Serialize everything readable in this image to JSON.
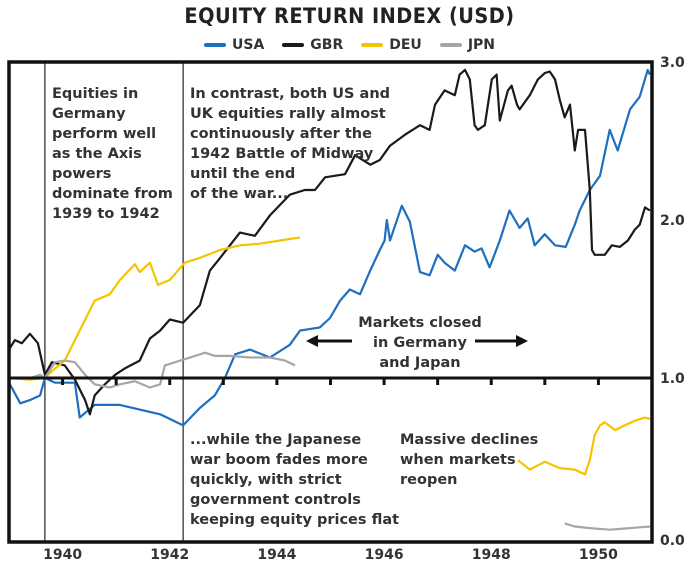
{
  "chart_data": {
    "type": "line",
    "title": "EQUITY RETURN INDEX (USD)",
    "xlabel": "",
    "ylabel": "",
    "xlim": [
      1939.0,
      1951.0
    ],
    "ylim": [
      0.0,
      3.0
    ],
    "x_ticks": [
      1940,
      1942,
      1944,
      1946,
      1948,
      1950
    ],
    "x_tick_labels": [
      "1940",
      "1942",
      "1944",
      "1946",
      "1948",
      "1950"
    ],
    "y_ticks": [
      0.0,
      1.0,
      2.0,
      3.0
    ],
    "y_tick_labels": [
      "0.0",
      "1.0",
      "2.0",
      "3.0"
    ],
    "legend_position": "top-center",
    "reference_lines": [
      1939.67,
      1942.25
    ],
    "series": [
      {
        "name": "USA",
        "color": "#1f6fbf",
        "segments": [
          [
            [
              1939.0,
              0.97
            ],
            [
              1939.21,
              0.84
            ],
            [
              1939.39,
              0.86
            ],
            [
              1939.58,
              0.89
            ],
            [
              1939.67,
              1.0
            ],
            [
              1939.86,
              0.97
            ],
            [
              1940.23,
              0.97
            ],
            [
              1940.32,
              0.75
            ],
            [
              1940.6,
              0.83
            ],
            [
              1941.07,
              0.83
            ],
            [
              1941.44,
              0.8
            ],
            [
              1941.82,
              0.77
            ],
            [
              1942.25,
              0.7
            ],
            [
              1942.56,
              0.81
            ],
            [
              1942.84,
              0.89
            ],
            [
              1943.03,
              1.0
            ],
            [
              1943.22,
              1.15
            ],
            [
              1943.5,
              1.18
            ],
            [
              1943.87,
              1.13
            ],
            [
              1944.24,
              1.21
            ],
            [
              1944.43,
              1.3
            ],
            [
              1944.8,
              1.32
            ],
            [
              1944.99,
              1.38
            ],
            [
              1945.18,
              1.49
            ],
            [
              1945.36,
              1.56
            ],
            [
              1945.55,
              1.53
            ],
            [
              1945.74,
              1.68
            ],
            [
              1945.92,
              1.81
            ],
            [
              1946.01,
              1.87
            ],
            [
              1946.05,
              2.0
            ],
            [
              1946.11,
              1.87
            ],
            [
              1946.33,
              2.09
            ],
            [
              1946.48,
              1.99
            ],
            [
              1946.67,
              1.67
            ],
            [
              1946.85,
              1.65
            ],
            [
              1947.0,
              1.78
            ],
            [
              1947.13,
              1.73
            ],
            [
              1947.32,
              1.68
            ],
            [
              1947.51,
              1.84
            ],
            [
              1947.69,
              1.8
            ],
            [
              1947.82,
              1.82
            ],
            [
              1947.97,
              1.7
            ],
            [
              1948.16,
              1.87
            ],
            [
              1948.34,
              2.06
            ],
            [
              1948.53,
              1.95
            ],
            [
              1948.68,
              2.01
            ],
            [
              1948.81,
              1.84
            ],
            [
              1949.0,
              1.91
            ],
            [
              1949.19,
              1.84
            ],
            [
              1949.39,
              1.83
            ],
            [
              1949.56,
              1.97
            ],
            [
              1949.65,
              2.06
            ],
            [
              1949.84,
              2.19
            ],
            [
              1950.03,
              2.28
            ],
            [
              1950.21,
              2.57
            ],
            [
              1950.36,
              2.44
            ],
            [
              1950.59,
              2.7
            ],
            [
              1950.77,
              2.78
            ],
            [
              1950.92,
              2.95
            ],
            [
              1950.96,
              2.92
            ]
          ]
        ]
      },
      {
        "name": "GBR",
        "color": "#1a1a1a",
        "segments": [
          [
            [
              1939.0,
              1.18
            ],
            [
              1939.11,
              1.24
            ],
            [
              1939.24,
              1.22
            ],
            [
              1939.39,
              1.28
            ],
            [
              1939.54,
              1.22
            ],
            [
              1939.67,
              1.02
            ],
            [
              1939.8,
              1.1
            ],
            [
              1940.04,
              1.08
            ],
            [
              1940.23,
              0.99
            ],
            [
              1940.42,
              0.86
            ],
            [
              1940.51,
              0.77
            ],
            [
              1940.6,
              0.89
            ],
            [
              1940.79,
              0.96
            ],
            [
              1940.98,
              1.02
            ],
            [
              1941.16,
              1.06
            ],
            [
              1941.44,
              1.11
            ],
            [
              1941.63,
              1.25
            ],
            [
              1941.82,
              1.3
            ],
            [
              1942.0,
              1.37
            ],
            [
              1942.25,
              1.35
            ],
            [
              1942.56,
              1.46
            ],
            [
              1942.75,
              1.68
            ],
            [
              1942.94,
              1.76
            ],
            [
              1943.31,
              1.92
            ],
            [
              1943.59,
              1.9
            ],
            [
              1943.87,
              2.03
            ],
            [
              1944.24,
              2.16
            ],
            [
              1944.52,
              2.19
            ],
            [
              1944.71,
              2.19
            ],
            [
              1944.9,
              2.27
            ],
            [
              1945.27,
              2.29
            ],
            [
              1945.46,
              2.41
            ],
            [
              1945.74,
              2.35
            ],
            [
              1945.92,
              2.38
            ],
            [
              1946.11,
              2.47
            ],
            [
              1946.39,
              2.54
            ],
            [
              1946.67,
              2.6
            ],
            [
              1946.85,
              2.57
            ],
            [
              1946.95,
              2.73
            ],
            [
              1947.13,
              2.82
            ],
            [
              1947.32,
              2.79
            ],
            [
              1947.41,
              2.92
            ],
            [
              1947.51,
              2.95
            ],
            [
              1947.6,
              2.89
            ],
            [
              1947.69,
              2.6
            ],
            [
              1947.75,
              2.57
            ],
            [
              1947.88,
              2.6
            ],
            [
              1948.01,
              2.89
            ],
            [
              1948.1,
              2.92
            ],
            [
              1948.16,
              2.63
            ],
            [
              1948.31,
              2.82
            ],
            [
              1948.38,
              2.85
            ],
            [
              1948.48,
              2.73
            ],
            [
              1948.53,
              2.7
            ],
            [
              1948.72,
              2.79
            ],
            [
              1948.87,
              2.89
            ],
            [
              1949.0,
              2.93
            ],
            [
              1949.09,
              2.94
            ],
            [
              1949.19,
              2.89
            ],
            [
              1949.28,
              2.76
            ],
            [
              1949.37,
              2.65
            ],
            [
              1949.47,
              2.73
            ],
            [
              1949.56,
              2.44
            ],
            [
              1949.62,
              2.57
            ],
            [
              1949.75,
              2.57
            ],
            [
              1949.84,
              2.19
            ],
            [
              1949.88,
              1.81
            ],
            [
              1949.93,
              1.78
            ],
            [
              1950.12,
              1.78
            ],
            [
              1950.25,
              1.84
            ],
            [
              1950.4,
              1.83
            ],
            [
              1950.55,
              1.87
            ],
            [
              1950.68,
              1.94
            ],
            [
              1950.77,
              1.97
            ],
            [
              1950.87,
              2.08
            ],
            [
              1950.96,
              2.06
            ]
          ]
        ]
      },
      {
        "name": "DEU",
        "color": "#f5c400",
        "segments": [
          [
            [
              1939.0,
              1.0
            ],
            [
              1939.39,
              0.99
            ],
            [
              1939.67,
              1.0
            ],
            [
              1939.86,
              1.06
            ],
            [
              1940.04,
              1.11
            ],
            [
              1940.32,
              1.3
            ],
            [
              1940.6,
              1.49
            ],
            [
              1940.88,
              1.53
            ],
            [
              1941.07,
              1.62
            ],
            [
              1941.35,
              1.72
            ],
            [
              1941.44,
              1.67
            ],
            [
              1941.63,
              1.73
            ],
            [
              1941.78,
              1.59
            ],
            [
              1942.0,
              1.62
            ],
            [
              1942.28,
              1.73
            ],
            [
              1942.56,
              1.76
            ],
            [
              1942.94,
              1.81
            ],
            [
              1943.31,
              1.84
            ],
            [
              1943.68,
              1.85
            ],
            [
              1944.06,
              1.87
            ],
            [
              1944.43,
              1.89
            ]
          ],
          [
            [
              1948.5,
              0.48
            ],
            [
              1948.72,
              0.42
            ],
            [
              1949.0,
              0.47
            ],
            [
              1949.28,
              0.43
            ],
            [
              1949.56,
              0.42
            ],
            [
              1949.75,
              0.39
            ],
            [
              1949.84,
              0.48
            ],
            [
              1949.93,
              0.64
            ],
            [
              1950.03,
              0.7
            ],
            [
              1950.12,
              0.72
            ],
            [
              1950.31,
              0.67
            ],
            [
              1950.49,
              0.7
            ],
            [
              1950.68,
              0.73
            ],
            [
              1950.87,
              0.75
            ],
            [
              1950.96,
              0.74
            ]
          ]
        ]
      },
      {
        "name": "JPN",
        "color": "#a6a6a6",
        "segments": [
          [
            [
              1939.0,
              1.0
            ],
            [
              1939.39,
              1.0
            ],
            [
              1939.58,
              1.02
            ],
            [
              1939.67,
              1.0
            ],
            [
              1939.86,
              1.1
            ],
            [
              1940.04,
              1.11
            ],
            [
              1940.23,
              1.1
            ],
            [
              1940.42,
              1.02
            ],
            [
              1940.6,
              0.96
            ],
            [
              1940.88,
              0.94
            ],
            [
              1941.07,
              0.96
            ],
            [
              1941.35,
              0.98
            ],
            [
              1941.63,
              0.94
            ],
            [
              1941.82,
              0.96
            ],
            [
              1941.91,
              1.08
            ],
            [
              1942.1,
              1.1
            ],
            [
              1942.38,
              1.13
            ],
            [
              1942.66,
              1.16
            ],
            [
              1942.84,
              1.14
            ],
            [
              1943.12,
              1.14
            ],
            [
              1943.5,
              1.13
            ],
            [
              1943.87,
              1.13
            ],
            [
              1944.15,
              1.11
            ],
            [
              1944.34,
              1.08
            ]
          ],
          [
            [
              1949.37,
              0.08
            ],
            [
              1949.56,
              0.06
            ],
            [
              1949.84,
              0.05
            ],
            [
              1950.21,
              0.04
            ],
            [
              1950.59,
              0.05
            ],
            [
              1950.96,
              0.06
            ]
          ]
        ]
      }
    ],
    "annotations": [
      {
        "id": "germany-note",
        "text": "Equities in\nGermany\nperform well\nas the Axis\npowers\ndominate from\n1939 to 1942"
      },
      {
        "id": "midway-note",
        "text": "In contrast, both US and\nUK equities rally almost\ncontinuously after the\n1942 Battle of Midway\nuntil the end\nof the war..."
      },
      {
        "id": "closed-note",
        "text": "Markets closed\nin Germany\nand Japan"
      },
      {
        "id": "japan-note",
        "text": "...while the Japanese\nwar boom fades more\nquickly, with strict\ngovernment controls\nkeeping equity prices flat"
      },
      {
        "id": "declines-note",
        "text": "Massive declines\nwhen markets\nreopen"
      }
    ]
  }
}
